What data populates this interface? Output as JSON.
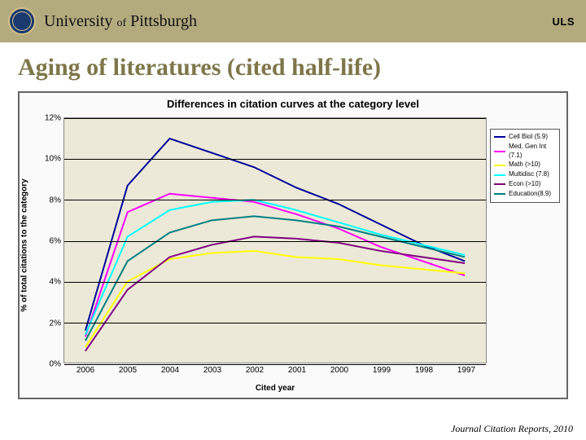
{
  "header": {
    "wordmark_univ": "University",
    "wordmark_of": "of",
    "wordmark_place": "Pittsburgh",
    "uls": "ULS"
  },
  "title": "Aging of literatures (cited half-life)",
  "citation": "Journal Citation Reports, 2010",
  "chart": {
    "type": "line",
    "title": "Differences in citation curves at the category level",
    "ylabel": "% of total citations to the category",
    "xlabel": "Cited year",
    "background_color": "#ece9d8",
    "grid_color": "#000000",
    "x_categories": [
      "2006",
      "2005",
      "2004",
      "2003",
      "2002",
      "2001",
      "2000",
      "1999",
      "1998",
      "1997"
    ],
    "ylim": [
      0,
      12
    ],
    "ytick_step": 2,
    "ytick_suffix": "%",
    "series": [
      {
        "name": "Cell Biol (5.9)",
        "color": "#000099",
        "width": 2,
        "values": [
          1.6,
          8.7,
          11.0,
          10.3,
          9.6,
          8.6,
          7.8,
          6.8,
          5.8,
          5.0
        ]
      },
      {
        "name": "Med, Gen Int (7.1)",
        "color": "#ff00ff",
        "width": 2,
        "values": [
          1.3,
          7.4,
          8.3,
          8.1,
          7.9,
          7.3,
          6.6,
          5.7,
          5.0,
          4.3
        ]
      },
      {
        "name": "Math (>10)",
        "color": "#ffff00",
        "width": 2,
        "values": [
          0.8,
          4.0,
          5.1,
          5.4,
          5.5,
          5.2,
          5.1,
          4.8,
          4.6,
          4.4
        ]
      },
      {
        "name": "Multidisc (7.8)",
        "color": "#00ffff",
        "width": 2,
        "values": [
          1.4,
          6.2,
          7.5,
          7.9,
          8.0,
          7.5,
          6.9,
          6.3,
          5.8,
          5.3
        ]
      },
      {
        "name": "Econ (>10)",
        "color": "#800080",
        "width": 2,
        "values": [
          0.6,
          3.6,
          5.2,
          5.8,
          6.2,
          6.1,
          5.9,
          5.5,
          5.2,
          4.9
        ]
      },
      {
        "name": "Education(8.9)",
        "color": "#008080",
        "width": 2,
        "values": [
          1.1,
          5.0,
          6.4,
          7.0,
          7.2,
          7.0,
          6.7,
          6.2,
          5.7,
          5.2
        ]
      }
    ]
  }
}
